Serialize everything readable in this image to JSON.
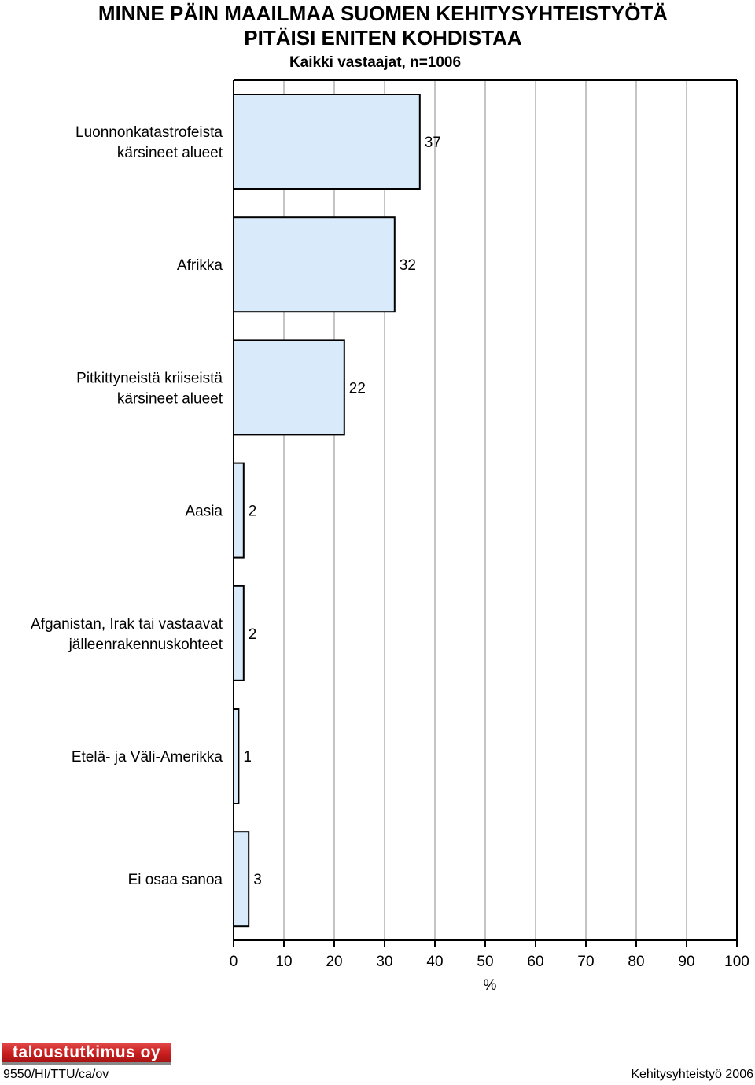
{
  "header": {
    "title_line1": "MINNE PÄIN MAAILMAA SUOMEN KEHITYSYHTEISTYÖTÄ",
    "title_line2": "PITÄISI ENITEN KOHDISTAA",
    "subtitle": "Kaikki vastaajat, n=1006"
  },
  "chart_data": {
    "type": "bar",
    "orientation": "horizontal",
    "title": "MINNE PÄIN MAAILMAA SUOMEN KEHITYSYHTEISTYÖTÄ PITÄISI ENITEN KOHDISTAA",
    "subtitle": "Kaikki vastaajat, n=1006",
    "categories": [
      [
        "Luonnonkatastrofeista",
        "kärsineet alueet"
      ],
      [
        "Afrikka"
      ],
      [
        "Pitkittyneistä kriiseistä",
        "kärsineet alueet"
      ],
      [
        "Aasia"
      ],
      [
        "Afganistan, Irak tai vastaavat",
        "jälleenrakennuskohteet"
      ],
      [
        "Etelä- ja Väli-Amerikka"
      ],
      [
        "Ei osaa sanoa"
      ]
    ],
    "values": [
      37,
      32,
      22,
      2,
      2,
      1,
      3
    ],
    "xlabel": "%",
    "ylabel": "",
    "xlim": [
      0,
      100
    ],
    "xticks": [
      0,
      10,
      20,
      30,
      40,
      50,
      60,
      70,
      80,
      90,
      100
    ],
    "grid": "vertical",
    "legend": "none",
    "colors": {
      "bar_fill": "#d9ebfb",
      "bar_stroke": "#000000",
      "grid": "#b0b0b0"
    }
  },
  "footer": {
    "logo_text": "taloustutkimus oy",
    "code": "9550/HI/TTU/ca/ov",
    "right": "Kehitysyhteistyö 2006"
  }
}
